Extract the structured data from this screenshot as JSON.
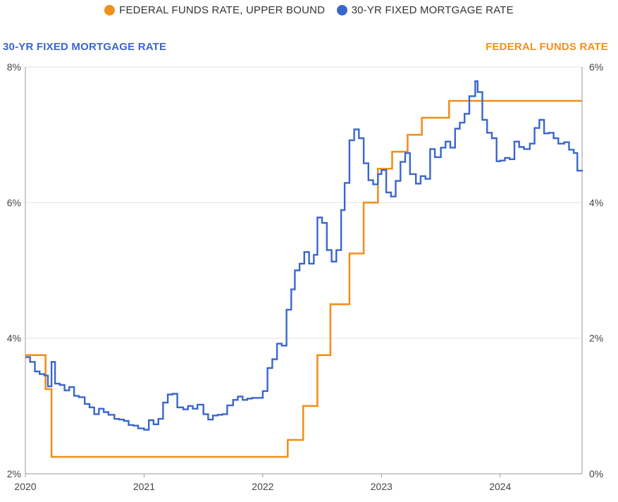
{
  "legend": {
    "fed_label": "FEDERAL FUNDS RATE, UPPER BOUND",
    "mortgage_label": "30-YR FIXED MORTGAGE RATE"
  },
  "axis_titles": {
    "left": "30-YR FIXED MORTGAGE RATE",
    "right": "FEDERAL FUNDS RATE"
  },
  "colors": {
    "fed": "#F0901E",
    "mortgage": "#3A66CC",
    "grid": "#E2E2E2",
    "axis": "#999999"
  },
  "chart_data": {
    "type": "line",
    "title": "",
    "x_ticks": [
      "2020",
      "2021",
      "2022",
      "2023",
      "2024"
    ],
    "xlim": [
      2020.0,
      2024.69
    ],
    "y_left": {
      "label": "30-YR FIXED MORTGAGE RATE",
      "lim": [
        2,
        8
      ],
      "ticks": [
        "2%",
        "4%",
        "6%",
        "8%"
      ]
    },
    "y_right": {
      "label": "FEDERAL FUNDS RATE",
      "lim": [
        0,
        6
      ],
      "ticks": [
        "0%",
        "2%",
        "4%",
        "6%"
      ]
    },
    "grid": "horizontal",
    "legend_position": "top-center",
    "series": [
      {
        "name": "FEDERAL FUNDS RATE, UPPER BOUND",
        "axis": "right",
        "step": true,
        "points": [
          [
            2020.0,
            1.75
          ],
          [
            2020.17,
            1.25
          ],
          [
            2020.22,
            0.25
          ],
          [
            2022.21,
            0.5
          ],
          [
            2022.34,
            1.0
          ],
          [
            2022.46,
            1.75
          ],
          [
            2022.57,
            2.5
          ],
          [
            2022.73,
            3.25
          ],
          [
            2022.85,
            4.0
          ],
          [
            2022.97,
            4.5
          ],
          [
            2023.09,
            4.75
          ],
          [
            2023.22,
            5.0
          ],
          [
            2023.34,
            5.25
          ],
          [
            2023.57,
            5.5
          ],
          [
            2024.69,
            5.5
          ]
        ]
      },
      {
        "name": "30-YR FIXED MORTGAGE RATE",
        "axis": "left",
        "step": true,
        "points": [
          [
            2020.0,
            3.72
          ],
          [
            2020.04,
            3.65
          ],
          [
            2020.08,
            3.51
          ],
          [
            2020.12,
            3.47
          ],
          [
            2020.16,
            3.45
          ],
          [
            2020.19,
            3.29
          ],
          [
            2020.22,
            3.65
          ],
          [
            2020.25,
            3.33
          ],
          [
            2020.29,
            3.31
          ],
          [
            2020.33,
            3.23
          ],
          [
            2020.37,
            3.28
          ],
          [
            2020.41,
            3.15
          ],
          [
            2020.45,
            3.13
          ],
          [
            2020.5,
            3.03
          ],
          [
            2020.54,
            2.98
          ],
          [
            2020.58,
            2.88
          ],
          [
            2020.62,
            2.96
          ],
          [
            2020.66,
            2.91
          ],
          [
            2020.7,
            2.87
          ],
          [
            2020.75,
            2.81
          ],
          [
            2020.79,
            2.8
          ],
          [
            2020.83,
            2.78
          ],
          [
            2020.87,
            2.72
          ],
          [
            2020.91,
            2.71
          ],
          [
            2020.95,
            2.67
          ],
          [
            2021.0,
            2.65
          ],
          [
            2021.04,
            2.79
          ],
          [
            2021.08,
            2.73
          ],
          [
            2021.12,
            2.81
          ],
          [
            2021.16,
            3.05
          ],
          [
            2021.2,
            3.17
          ],
          [
            2021.24,
            3.18
          ],
          [
            2021.28,
            2.98
          ],
          [
            2021.33,
            2.95
          ],
          [
            2021.37,
            3.0
          ],
          [
            2021.41,
            2.96
          ],
          [
            2021.45,
            3.02
          ],
          [
            2021.5,
            2.88
          ],
          [
            2021.54,
            2.8
          ],
          [
            2021.58,
            2.86
          ],
          [
            2021.62,
            2.87
          ],
          [
            2021.66,
            2.88
          ],
          [
            2021.7,
            3.01
          ],
          [
            2021.75,
            3.09
          ],
          [
            2021.79,
            3.14
          ],
          [
            2021.83,
            3.09
          ],
          [
            2021.87,
            3.11
          ],
          [
            2021.91,
            3.12
          ],
          [
            2022.0,
            3.22
          ],
          [
            2022.04,
            3.56
          ],
          [
            2022.08,
            3.69
          ],
          [
            2022.12,
            3.92
          ],
          [
            2022.16,
            3.89
          ],
          [
            2022.2,
            4.42
          ],
          [
            2022.24,
            4.72
          ],
          [
            2022.27,
            5.0
          ],
          [
            2022.31,
            5.1
          ],
          [
            2022.35,
            5.27
          ],
          [
            2022.39,
            5.1
          ],
          [
            2022.43,
            5.23
          ],
          [
            2022.46,
            5.78
          ],
          [
            2022.5,
            5.7
          ],
          [
            2022.54,
            5.3
          ],
          [
            2022.58,
            5.13
          ],
          [
            2022.62,
            5.3
          ],
          [
            2022.66,
            5.89
          ],
          [
            2022.69,
            6.29
          ],
          [
            2022.73,
            6.92
          ],
          [
            2022.77,
            7.08
          ],
          [
            2022.81,
            6.95
          ],
          [
            2022.85,
            6.58
          ],
          [
            2022.89,
            6.33
          ],
          [
            2022.93,
            6.27
          ],
          [
            2022.97,
            6.42
          ],
          [
            2023.0,
            6.48
          ],
          [
            2023.04,
            6.15
          ],
          [
            2023.08,
            6.09
          ],
          [
            2023.12,
            6.32
          ],
          [
            2023.16,
            6.6
          ],
          [
            2023.2,
            6.73
          ],
          [
            2023.24,
            6.42
          ],
          [
            2023.29,
            6.28
          ],
          [
            2023.33,
            6.39
          ],
          [
            2023.37,
            6.35
          ],
          [
            2023.41,
            6.79
          ],
          [
            2023.45,
            6.67
          ],
          [
            2023.5,
            6.81
          ],
          [
            2023.54,
            6.9
          ],
          [
            2023.58,
            6.81
          ],
          [
            2023.62,
            7.09
          ],
          [
            2023.66,
            7.18
          ],
          [
            2023.7,
            7.31
          ],
          [
            2023.74,
            7.57
          ],
          [
            2023.79,
            7.79
          ],
          [
            2023.81,
            7.63
          ],
          [
            2023.85,
            7.22
          ],
          [
            2023.89,
            7.03
          ],
          [
            2023.93,
            6.95
          ],
          [
            2023.97,
            6.61
          ],
          [
            2024.0,
            6.62
          ],
          [
            2024.04,
            6.66
          ],
          [
            2024.08,
            6.64
          ],
          [
            2024.12,
            6.9
          ],
          [
            2024.16,
            6.82
          ],
          [
            2024.2,
            6.79
          ],
          [
            2024.25,
            6.87
          ],
          [
            2024.29,
            7.1
          ],
          [
            2024.33,
            7.22
          ],
          [
            2024.37,
            7.02
          ],
          [
            2024.41,
            7.03
          ],
          [
            2024.45,
            6.95
          ],
          [
            2024.49,
            6.87
          ],
          [
            2024.54,
            6.89
          ],
          [
            2024.58,
            6.78
          ],
          [
            2024.62,
            6.73
          ],
          [
            2024.65,
            6.47
          ],
          [
            2024.69,
            6.46
          ]
        ]
      }
    ]
  }
}
